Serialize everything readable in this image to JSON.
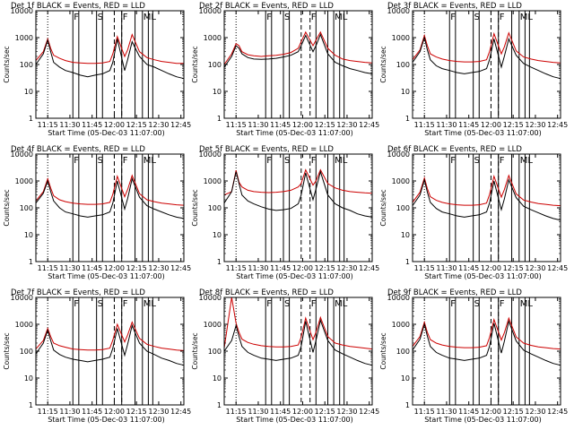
{
  "colors": {
    "events": "#000000",
    "lld": "#cc0000",
    "axes": "#000000"
  },
  "shared": {
    "x_ticks": [
      "11:15",
      "11:30",
      "11:45",
      "12:00",
      "12:15",
      "12:30",
      "12:45"
    ],
    "xlabel": "Start Time (05-Dec-03 11:07:00)",
    "ylabel": "Counts/sec",
    "y_ticks": [
      "1",
      "10",
      "100",
      "1000",
      "10000"
    ],
    "annotations": [
      "F",
      "S",
      "F",
      "ML"
    ]
  },
  "chart_data": [
    {
      "type": "line",
      "title": "Det 1f BLACK = Events, RED = LLD",
      "xlabel": "Start Time (05-Dec-03 11:07:00)",
      "ylabel": "Counts/sec",
      "x_unit": "minutes after 11:07:00",
      "xlim": [
        0,
        100
      ],
      "ylim": [
        1,
        10000
      ],
      "yscale": "log",
      "x": [
        0,
        5,
        8,
        10,
        12,
        16,
        20,
        25,
        30,
        35,
        40,
        45,
        50,
        52,
        55,
        60,
        62,
        65,
        70,
        75,
        80,
        85,
        90,
        95,
        100
      ],
      "series": [
        {
          "name": "Events",
          "values": [
            100,
            250,
            800,
            300,
            120,
            80,
            60,
            50,
            40,
            35,
            40,
            45,
            60,
            120,
            900,
            60,
            150,
            700,
            200,
            100,
            80,
            60,
            45,
            35,
            30
          ]
        },
        {
          "name": "LLD",
          "values": [
            140,
            300,
            900,
            400,
            220,
            170,
            140,
            120,
            115,
            110,
            110,
            115,
            130,
            250,
            1100,
            200,
            350,
            1300,
            300,
            180,
            150,
            130,
            120,
            110,
            110
          ]
        }
      ],
      "vlines_solid": [
        25,
        29,
        41,
        45,
        58,
        67,
        72,
        76,
        79
      ],
      "vlines_dashed": [
        53,
        58
      ],
      "vline_dotted": 8
    },
    {
      "type": "line",
      "title": "Det 2f BLACK = Events, RED = LLD",
      "xlabel": "Start Time (05-Dec-03 11:07:00)",
      "ylabel": "Counts/sec",
      "x_unit": "minutes after 11:07:00",
      "xlim": [
        0,
        100
      ],
      "ylim": [
        1,
        10000
      ],
      "yscale": "log",
      "x": [
        0,
        5,
        8,
        10,
        12,
        16,
        20,
        25,
        30,
        35,
        40,
        45,
        50,
        52,
        55,
        60,
        62,
        65,
        70,
        75,
        80,
        85,
        90,
        95,
        100
      ],
      "series": [
        {
          "name": "Events",
          "values": [
            80,
            200,
            500,
            400,
            250,
            180,
            160,
            155,
            160,
            170,
            190,
            220,
            300,
            500,
            1200,
            300,
            500,
            1300,
            250,
            120,
            90,
            70,
            60,
            50,
            45
          ]
        },
        {
          "name": "LLD",
          "values": [
            100,
            250,
            600,
            500,
            300,
            230,
            210,
            200,
            210,
            220,
            240,
            280,
            400,
            700,
            1600,
            500,
            800,
            1600,
            400,
            220,
            160,
            140,
            130,
            120,
            115
          ]
        }
      ],
      "vlines_solid": [
        28,
        32,
        40,
        44,
        62,
        70,
        74,
        78,
        81
      ],
      "vlines_dashed": [
        52,
        58
      ],
      "vline_dotted": 8
    },
    {
      "type": "line",
      "title": "Det 3f BLACK = Events, RED = LLD",
      "xlabel": "Start Time (05-Dec-03 11:07:00)",
      "ylabel": "Counts/sec",
      "x_unit": "minutes after 11:07:00",
      "xlim": [
        0,
        100
      ],
      "ylim": [
        1,
        10000
      ],
      "yscale": "log",
      "x": [
        0,
        5,
        8,
        10,
        12,
        16,
        20,
        25,
        30,
        35,
        40,
        45,
        50,
        52,
        55,
        60,
        62,
        65,
        70,
        75,
        80,
        85,
        90,
        95,
        100
      ],
      "series": [
        {
          "name": "Events",
          "values": [
            120,
            300,
            1000,
            350,
            150,
            90,
            70,
            60,
            50,
            45,
            50,
            55,
            70,
            150,
            900,
            80,
            200,
            900,
            220,
            110,
            80,
            60,
            45,
            35,
            30
          ]
        },
        {
          "name": "LLD",
          "values": [
            150,
            350,
            1200,
            500,
            250,
            190,
            160,
            140,
            130,
            125,
            125,
            130,
            150,
            300,
            1400,
            250,
            450,
            1500,
            320,
            190,
            160,
            140,
            130,
            120,
            115
          ]
        }
      ],
      "vlines_solid": [
        25,
        29,
        41,
        45,
        58,
        67,
        72,
        76,
        79
      ],
      "vlines_dashed": [
        53,
        58
      ],
      "vline_dotted": 8
    },
    {
      "type": "line",
      "title": "Det 4f BLACK = Events, RED = LLD",
      "xlabel": "Start Time (05-Dec-03 11:07:00)",
      "ylabel": "Counts/sec",
      "x_unit": "minutes after 11:07:00",
      "xlim": [
        0,
        100
      ],
      "ylim": [
        1,
        10000
      ],
      "yscale": "log",
      "x": [
        0,
        5,
        8,
        10,
        12,
        16,
        20,
        25,
        30,
        35,
        40,
        45,
        50,
        52,
        55,
        60,
        62,
        65,
        70,
        75,
        80,
        85,
        90,
        95,
        100
      ],
      "series": [
        {
          "name": "Events",
          "values": [
            150,
            350,
            1000,
            400,
            180,
            100,
            70,
            60,
            50,
            45,
            50,
            55,
            70,
            150,
            1000,
            90,
            220,
            1200,
            250,
            120,
            90,
            70,
            55,
            45,
            40
          ]
        },
        {
          "name": "LLD",
          "values": [
            180,
            400,
            1200,
            550,
            280,
            200,
            170,
            150,
            140,
            135,
            135,
            140,
            160,
            320,
            1500,
            260,
            480,
            1600,
            340,
            200,
            170,
            150,
            140,
            130,
            125
          ]
        }
      ],
      "vlines_solid": [
        25,
        29,
        41,
        45,
        58,
        67,
        72,
        76,
        79
      ],
      "vlines_dashed": [
        53,
        58
      ],
      "vline_dotted": 8
    },
    {
      "type": "line",
      "title": "Det 5f BLACK = Events, RED = LLD",
      "xlabel": "Start Time (05-Dec-03 11:07:00)",
      "ylabel": "Counts/sec",
      "x_unit": "minutes after 11:07:00",
      "xlim": [
        0,
        100
      ],
      "ylim": [
        1,
        10000
      ],
      "yscale": "log",
      "x": [
        0,
        5,
        8,
        10,
        12,
        16,
        20,
        25,
        30,
        35,
        40,
        45,
        50,
        52,
        55,
        60,
        62,
        65,
        70,
        75,
        80,
        85,
        90,
        95,
        100
      ],
      "series": [
        {
          "name": "Events",
          "values": [
            150,
            400,
            2200,
            800,
            300,
            180,
            140,
            110,
            90,
            80,
            85,
            95,
            140,
            300,
            2000,
            200,
            500,
            2200,
            300,
            140,
            100,
            80,
            60,
            50,
            45
          ]
        },
        {
          "name": "LLD",
          "values": [
            300,
            400,
            2500,
            900,
            600,
            450,
            400,
            380,
            370,
            380,
            400,
            450,
            600,
            800,
            2600,
            700,
            1000,
            2600,
            800,
            550,
            450,
            400,
            380,
            360,
            350
          ]
        }
      ],
      "vlines_solid": [
        28,
        32,
        40,
        44,
        62,
        70,
        74,
        78,
        81
      ],
      "vlines_dashed": [
        52,
        58
      ],
      "vline_dotted": 8
    },
    {
      "type": "line",
      "title": "Det 6f BLACK = Events, RED = LLD",
      "xlabel": "Start Time (05-Dec-03 11:07:00)",
      "ylabel": "Counts/sec",
      "x_unit": "minutes after 11:07:00",
      "xlim": [
        0,
        100
      ],
      "ylim": [
        1,
        10000
      ],
      "yscale": "log",
      "x": [
        0,
        5,
        8,
        10,
        12,
        16,
        20,
        25,
        30,
        35,
        40,
        45,
        50,
        52,
        55,
        60,
        62,
        65,
        70,
        75,
        80,
        85,
        90,
        95,
        100
      ],
      "series": [
        {
          "name": "Events",
          "values": [
            120,
            300,
            1100,
            380,
            160,
            95,
            70,
            60,
            50,
            45,
            50,
            55,
            70,
            150,
            1000,
            85,
            210,
            1100,
            240,
            115,
            85,
            65,
            50,
            40,
            35
          ]
        },
        {
          "name": "LLD",
          "values": [
            160,
            380,
            1300,
            520,
            260,
            190,
            160,
            140,
            130,
            125,
            125,
            130,
            150,
            310,
            1500,
            250,
            470,
            1600,
            330,
            195,
            165,
            145,
            135,
            125,
            120
          ]
        }
      ],
      "vlines_solid": [
        25,
        29,
        41,
        45,
        58,
        67,
        72,
        76,
        79
      ],
      "vlines_dashed": [
        53,
        58
      ],
      "vline_dotted": 8
    },
    {
      "type": "line",
      "title": "Det 7f BLACK = Events, RED = LLD",
      "xlabel": "Start Time (05-Dec-03 11:07:00)",
      "ylabel": "Counts/sec",
      "x_unit": "minutes after 11:07:00",
      "xlim": [
        0,
        100
      ],
      "ylim": [
        1,
        10000
      ],
      "yscale": "log",
      "x": [
        0,
        5,
        8,
        10,
        12,
        16,
        20,
        25,
        30,
        35,
        40,
        45,
        50,
        52,
        55,
        60,
        62,
        65,
        70,
        75,
        80,
        85,
        90,
        95,
        100
      ],
      "series": [
        {
          "name": "Events",
          "values": [
            80,
            200,
            600,
            250,
            110,
            75,
            60,
            50,
            45,
            40,
            45,
            50,
            60,
            130,
            700,
            70,
            180,
            900,
            200,
            100,
            75,
            55,
            45,
            35,
            30
          ]
        },
        {
          "name": "LLD",
          "values": [
            120,
            250,
            700,
            350,
            200,
            160,
            140,
            120,
            115,
            110,
            110,
            115,
            130,
            260,
            1000,
            220,
            400,
            1200,
            300,
            180,
            150,
            130,
            120,
            110,
            105
          ]
        }
      ],
      "vlines_solid": [
        25,
        29,
        41,
        45,
        58,
        67,
        72,
        76,
        79
      ],
      "vlines_dashed": [
        53,
        58
      ],
      "vline_dotted": 8
    },
    {
      "type": "line",
      "title": "Det 8f BLACK = Events, RED = LLD",
      "xlabel": "Start Time (05-Dec-03 11:07:00)",
      "ylabel": "Counts/sec",
      "x_unit": "minutes after 11:07:00",
      "xlim": [
        0,
        100
      ],
      "ylim": [
        1,
        10000
      ],
      "yscale": "log",
      "x": [
        0,
        5,
        8,
        10,
        12,
        16,
        20,
        25,
        30,
        35,
        40,
        45,
        50,
        52,
        55,
        60,
        62,
        65,
        70,
        75,
        80,
        85,
        90,
        95,
        100
      ],
      "series": [
        {
          "name": "Events",
          "values": [
            100,
            250,
            900,
            350,
            150,
            90,
            70,
            55,
            50,
            45,
            50,
            55,
            70,
            150,
            1300,
            90,
            250,
            1400,
            250,
            110,
            80,
            60,
            45,
            35,
            30
          ]
        },
        {
          "name": "LLD",
          "values": [
            130,
            10000,
            1100,
            500,
            280,
            210,
            180,
            160,
            150,
            145,
            145,
            150,
            170,
            330,
            1700,
            270,
            500,
            1800,
            350,
            200,
            170,
            150,
            140,
            130,
            120
          ]
        }
      ],
      "vlines_solid": [
        28,
        32,
        40,
        44,
        62,
        70,
        74,
        78,
        81
      ],
      "vlines_dashed": [
        52,
        58
      ],
      "vline_dotted": 8
    },
    {
      "type": "line",
      "title": "Det 9f BLACK = Events, RED = LLD",
      "xlabel": "Start Time (05-Dec-03 11:07:00)",
      "ylabel": "Counts/sec",
      "x_unit": "minutes after 11:07:00",
      "xlim": [
        0,
        100
      ],
      "ylim": [
        1,
        10000
      ],
      "yscale": "log",
      "x": [
        0,
        5,
        8,
        10,
        12,
        16,
        20,
        25,
        30,
        35,
        40,
        45,
        50,
        52,
        55,
        60,
        62,
        65,
        70,
        75,
        80,
        85,
        90,
        95,
        100
      ],
      "series": [
        {
          "name": "Events",
          "values": [
            110,
            280,
            1000,
            360,
            150,
            90,
            70,
            55,
            50,
            45,
            50,
            55,
            70,
            150,
            1100,
            85,
            230,
            1300,
            240,
            110,
            80,
            60,
            45,
            35,
            30
          ]
        },
        {
          "name": "LLD",
          "values": [
            150,
            350,
            1200,
            500,
            270,
            200,
            170,
            150,
            140,
            135,
            135,
            140,
            160,
            320,
            1500,
            260,
            480,
            1700,
            340,
            200,
            165,
            145,
            135,
            125,
            120
          ]
        }
      ],
      "vlines_solid": [
        25,
        29,
        41,
        45,
        58,
        67,
        72,
        76,
        79
      ],
      "vlines_dashed": [
        53,
        58
      ],
      "vline_dotted": 8
    }
  ]
}
